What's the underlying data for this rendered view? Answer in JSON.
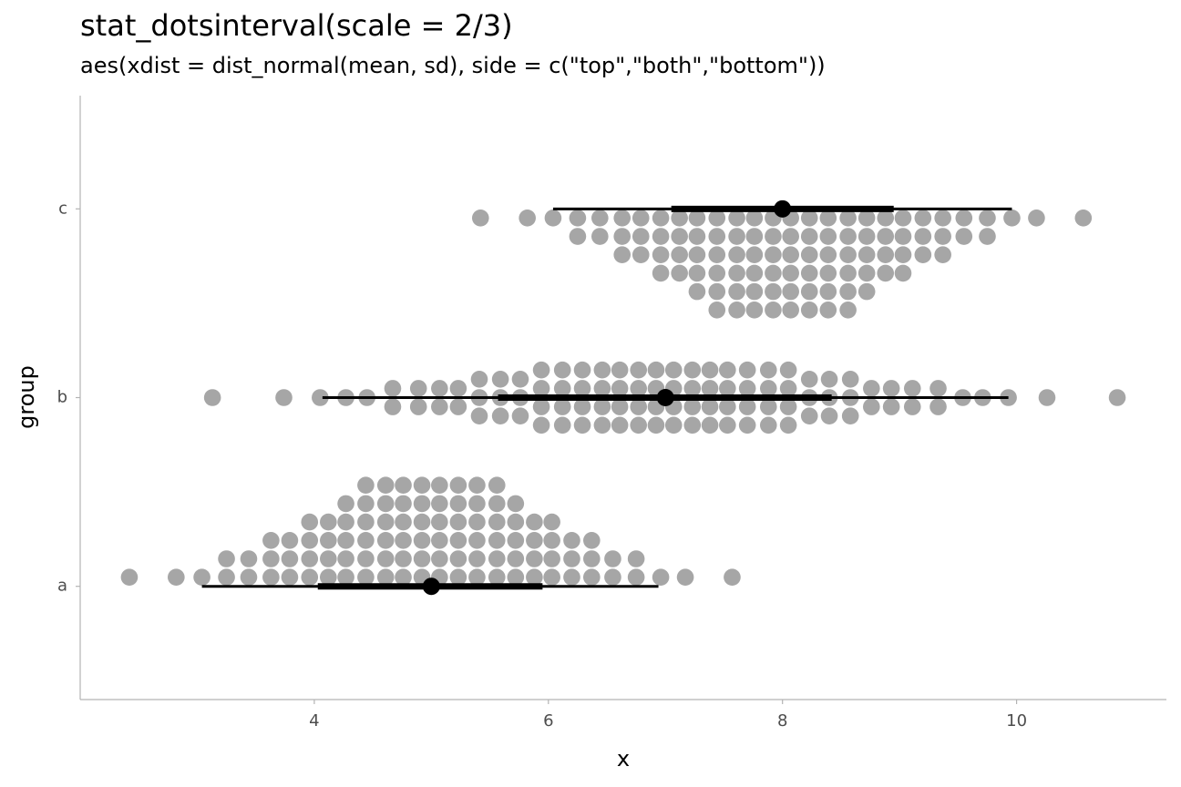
{
  "chart_data": {
    "type": "dotsinterval",
    "title": "stat_dotsinterval(scale = 2/3)",
    "subtitle": "aes(xdist = dist_normal(mean, sd), side = c(\"top\",\"both\",\"bottom\"))",
    "x_label": "x",
    "y_label": "group",
    "categories": [
      "a",
      "b",
      "c"
    ],
    "xlim": [
      2.0,
      11.28
    ],
    "xticks": [
      4,
      6,
      8,
      10
    ],
    "dot_color": "#a6a6a6",
    "interval_color": "#000000",
    "groups": [
      {
        "side": "top",
        "bin_x": [
          2.42,
          2.82,
          3.04,
          3.25,
          3.44,
          3.63,
          3.79,
          3.96,
          4.12,
          4.27,
          4.44,
          4.61,
          4.76,
          4.92,
          5.07,
          5.23,
          5.39,
          5.56,
          5.72,
          5.88,
          6.03,
          6.2,
          6.37,
          6.55,
          6.75,
          6.96,
          7.17,
          7.57
        ],
        "counts": [
          1,
          1,
          1,
          2,
          2,
          3,
          3,
          4,
          4,
          5,
          6,
          6,
          6,
          6,
          6,
          6,
          6,
          6,
          5,
          4,
          4,
          3,
          3,
          2,
          2,
          1,
          1,
          1
        ],
        "point": 5,
        "thick": [
          4.03,
          5.95
        ],
        "thin": [
          3.04,
          6.94
        ]
      },
      {
        "side": "both",
        "bin_x": [
          3.13,
          3.74,
          4.05,
          4.27,
          4.45,
          4.67,
          4.89,
          5.07,
          5.23,
          5.41,
          5.59,
          5.76,
          5.94,
          6.12,
          6.29,
          6.46,
          6.61,
          6.77,
          6.92,
          7.07,
          7.23,
          7.38,
          7.53,
          7.7,
          7.88,
          8.05,
          8.23,
          8.4,
          8.58,
          8.76,
          8.93,
          9.11,
          9.33,
          9.54,
          9.71,
          9.93,
          10.26,
          10.86
        ],
        "counts": [
          1,
          1,
          1,
          1,
          1,
          2,
          2,
          2,
          2,
          3,
          3,
          3,
          4,
          4,
          4,
          4,
          4,
          4,
          4,
          4,
          4,
          4,
          4,
          4,
          4,
          4,
          3,
          3,
          3,
          2,
          2,
          2,
          2,
          1,
          1,
          1,
          1,
          1
        ],
        "point": 7,
        "thick": [
          5.57,
          8.42
        ],
        "thin": [
          4.07,
          9.93
        ]
      },
      {
        "side": "bottom",
        "bin_x": [
          5.42,
          5.82,
          6.04,
          6.25,
          6.44,
          6.63,
          6.79,
          6.96,
          7.12,
          7.27,
          7.44,
          7.61,
          7.76,
          7.92,
          8.07,
          8.23,
          8.39,
          8.56,
          8.72,
          8.88,
          9.03,
          9.2,
          9.37,
          9.55,
          9.75,
          9.96,
          10.17,
          10.57
        ],
        "counts": [
          1,
          1,
          1,
          2,
          2,
          3,
          3,
          4,
          4,
          5,
          6,
          6,
          6,
          6,
          6,
          6,
          6,
          6,
          5,
          4,
          4,
          3,
          3,
          2,
          2,
          1,
          1,
          1
        ],
        "point": 8,
        "thick": [
          7.05,
          8.95
        ],
        "thin": [
          6.04,
          9.96
        ]
      }
    ]
  }
}
